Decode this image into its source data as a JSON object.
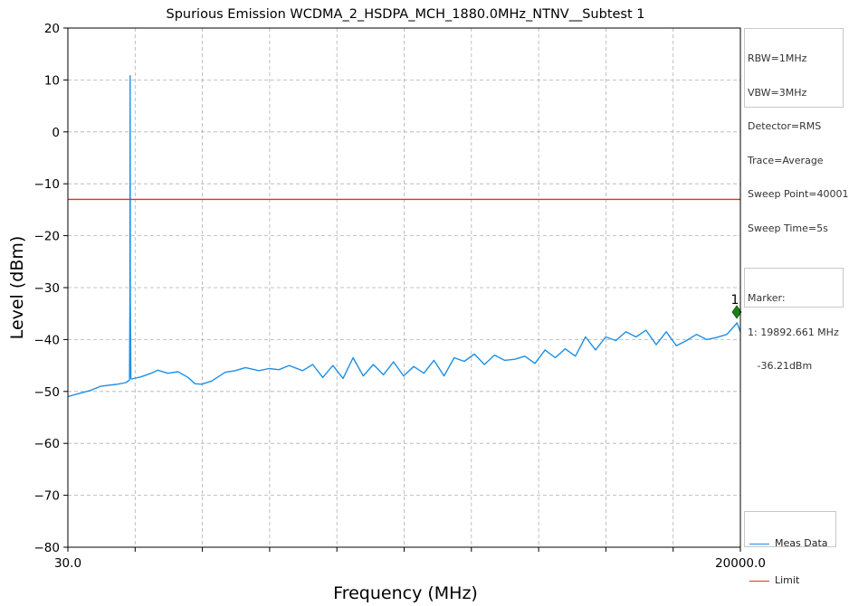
{
  "chart_data": {
    "type": "line",
    "title": "Spurious Emission WCDMA_2_HSDPA_MCH_1880.0MHz_NTNV__Subtest 1",
    "xlabel": "Frequency (MHz)",
    "ylabel": "Level (dBm)",
    "xlim": [
      30.0,
      20000.0
    ],
    "ylim": [
      -80,
      20
    ],
    "x_tick_labels": [
      "30.0",
      "20000.0"
    ],
    "y_ticks": [
      20,
      10,
      0,
      -10,
      -20,
      -30,
      -40,
      -50,
      -60,
      -70,
      -80
    ],
    "grid": true,
    "legend_position": "bottom-right, outside plot",
    "settings": [
      "RBW=1MHz",
      "VBW=3MHz",
      "Detector=RMS",
      "Trace=Average",
      "Sweep Point=40001",
      "Sweep Time=5s"
    ],
    "marker_text": [
      "Marker:",
      "1: 19892.661 MHz",
      "   -36.21dBm"
    ],
    "marker": {
      "label": "1",
      "x": 19892.661,
      "y": -34.7,
      "color": "#1a7f1a"
    },
    "series": [
      {
        "name": "Meas Data",
        "color": "#1f8fe6",
        "x": [
          30,
          300,
          700,
          1000,
          1500,
          1750,
          1860,
          1875,
          1880,
          1885,
          1900,
          1920,
          2200,
          2500,
          2700,
          3000,
          3300,
          3600,
          3800,
          4000,
          4300,
          4700,
          5000,
          5300,
          5700,
          6000,
          6300,
          6600,
          7000,
          7300,
          7600,
          7900,
          8200,
          8500,
          8800,
          9100,
          9400,
          9700,
          10000,
          10300,
          10600,
          10900,
          11200,
          11500,
          11800,
          12100,
          12400,
          12700,
          13000,
          13300,
          13600,
          13900,
          14200,
          14500,
          14800,
          15100,
          15400,
          15700,
          16000,
          16300,
          16600,
          16900,
          17200,
          17500,
          17800,
          18100,
          18400,
          18700,
          19000,
          19300,
          19600,
          19900,
          20000
        ],
        "y": [
          -51,
          -50.5,
          -49.8,
          -49,
          -48.6,
          -48.3,
          -47.8,
          -31,
          10.8,
          -32,
          -47.5,
          -47.6,
          -47.2,
          -46.5,
          -45.9,
          -46.5,
          -46.2,
          -47.3,
          -48.5,
          -48.6,
          -48.0,
          -46.3,
          -46.0,
          -45.4,
          -46.0,
          -45.6,
          -45.8,
          -45.0,
          -46.0,
          -44.8,
          -47.3,
          -45.0,
          -47.5,
          -43.5,
          -47.0,
          -44.8,
          -46.8,
          -44.3,
          -47.0,
          -45.2,
          -46.5,
          -44.0,
          -47.0,
          -43.5,
          -44.2,
          -42.8,
          -44.8,
          -43.0,
          -44.0,
          -43.8,
          -43.2,
          -44.6,
          -42.0,
          -43.5,
          -41.8,
          -43.2,
          -39.5,
          -42.0,
          -39.5,
          -40.2,
          -38.5,
          -39.5,
          -38.2,
          -41.0,
          -38.5,
          -41.2,
          -40.2,
          -39.0,
          -40.0,
          -39.6,
          -39.0,
          -36.8,
          -38.5
        ]
      },
      {
        "name": "Limit",
        "color": "#e0311f",
        "x": [
          30,
          20000
        ],
        "y": [
          -13,
          -13
        ]
      }
    ]
  }
}
